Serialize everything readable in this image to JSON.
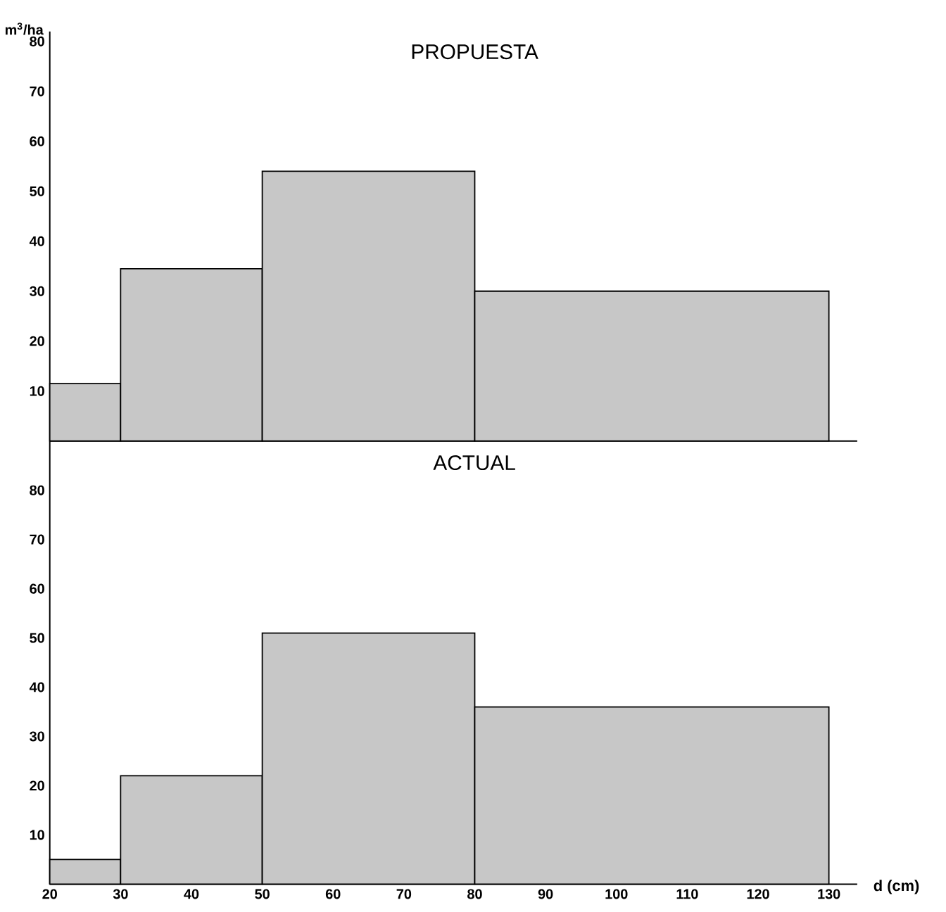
{
  "chart_data": [
    {
      "type": "histogram",
      "title": "PROPUESTA",
      "ylabel": "m$^{3}$/ha",
      "bins": [
        20,
        30,
        50,
        80,
        130
      ],
      "values": [
        11.5,
        34.5,
        54,
        30
      ],
      "color": "#000000",
      "xlim": [
        20,
        134
      ],
      "ylim": [
        0,
        82
      ],
      "yticks": [
        10,
        20,
        30,
        40,
        50,
        60,
        70,
        80
      ],
      "tick_labels": "y"
    },
    {
      "type": "histogram",
      "title": "ACTUAL",
      "xlabel": "d (cm)",
      "bins": [
        20,
        30,
        50,
        80,
        130
      ],
      "values": [
        5,
        22,
        51,
        36
      ],
      "color": "#000000",
      "xlim": [
        20,
        134
      ],
      "ylim": [
        0,
        90
      ],
      "xticks": [
        20,
        30,
        40,
        50,
        60,
        70,
        80,
        90,
        100,
        110,
        120,
        130
      ],
      "yticks": [
        10,
        20,
        30,
        40,
        50,
        60,
        70,
        80
      ]
    }
  ]
}
